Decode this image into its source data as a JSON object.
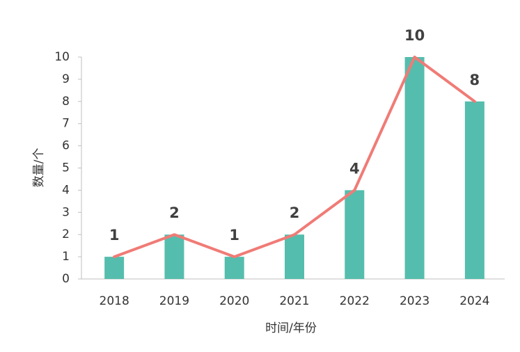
{
  "chart_data": {
    "type": "bar",
    "x_label": "时间/年份",
    "y_label": "数量/个",
    "categories": [
      "2018",
      "2019",
      "2020",
      "2021",
      "2022",
      "2023",
      "2024"
    ],
    "series": [
      {
        "type": "bar",
        "color": "#55bdad",
        "values": [
          1,
          2,
          1,
          2,
          4,
          10,
          8
        ]
      },
      {
        "type": "line",
        "color": "#f07b76",
        "values": [
          1,
          2,
          1,
          2,
          4,
          10,
          8
        ]
      }
    ],
    "ylim": [
      0,
      10
    ],
    "yticks": [
      0,
      1,
      2,
      3,
      4,
      5,
      6,
      7,
      8,
      9,
      10
    ],
    "grid": false
  }
}
